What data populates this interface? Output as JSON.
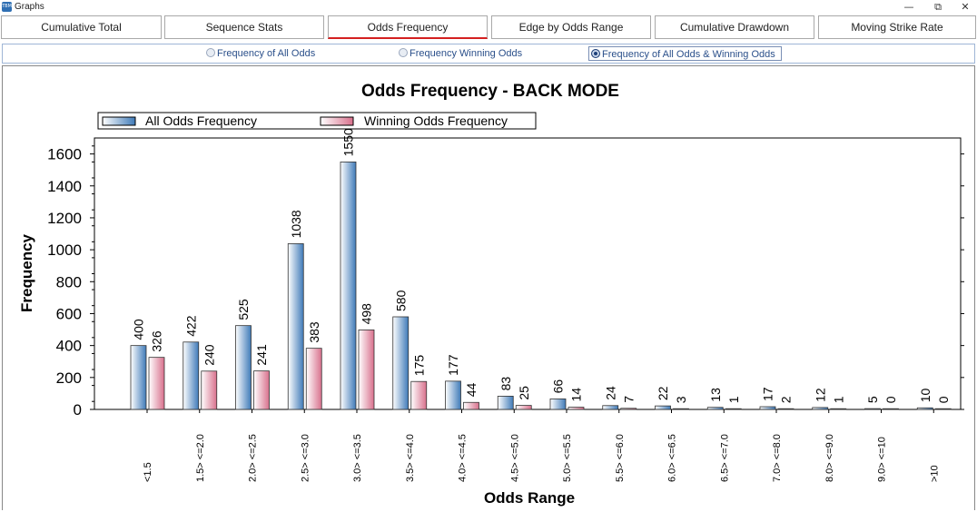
{
  "window": {
    "title": "Graphs",
    "minimize": "—",
    "restore": "⧉",
    "close": "✕"
  },
  "tabs": [
    {
      "label": "Cumulative Total"
    },
    {
      "label": "Sequence Stats"
    },
    {
      "label": "Odds Frequency",
      "active": true
    },
    {
      "label": "Edge by Odds Range"
    },
    {
      "label": "Cumulative Drawdown"
    },
    {
      "label": "Moving Strike Rate"
    }
  ],
  "radio_options": [
    {
      "label": "Frequency of All Odds",
      "selected": false
    },
    {
      "label": "Frequency Winning Odds",
      "selected": false
    },
    {
      "label": "Frequency of All Odds & Winning Odds",
      "selected": true
    }
  ],
  "colors": {
    "accent_underline": "#d42020",
    "series_all_light": "#ffffff",
    "series_all_dark": "#3f7ab8",
    "series_win_light": "#ffffff",
    "series_win_dark": "#d8708c"
  },
  "chart_data": {
    "type": "bar",
    "title": "Odds Frequency - BACK MODE",
    "xlabel": "Odds Range",
    "ylabel": "Frequency",
    "ylim": [
      0,
      1700
    ],
    "yticks": [
      0,
      200,
      400,
      600,
      800,
      1000,
      1200,
      1400,
      1600
    ],
    "legend_position": "top-left",
    "categories": [
      "<1.5",
      "1.5> <=2.0",
      "2.0> <=2.5",
      "2.5> <=3.0",
      "3.0> <=3.5",
      "3.5> <=4.0",
      "4.0> <=4.5",
      "4.5> <=5.0",
      "5.0> <=5.5",
      "5.5> <=6.0",
      "6.0> <=6.5",
      "6.5> <=7.0",
      "7.0> <=8.0",
      "8.0> <=9.0",
      "9.0> <=10",
      ">10"
    ],
    "series": [
      {
        "name": "All Odds Frequency",
        "values": [
          400,
          422,
          525,
          1038,
          1550,
          580,
          177,
          83,
          66,
          24,
          22,
          13,
          17,
          12,
          5,
          10
        ]
      },
      {
        "name": "Winning Odds Frequency",
        "values": [
          326,
          240,
          241,
          383,
          498,
          175,
          44,
          25,
          14,
          7,
          3,
          1,
          2,
          1,
          0,
          0
        ]
      }
    ]
  }
}
